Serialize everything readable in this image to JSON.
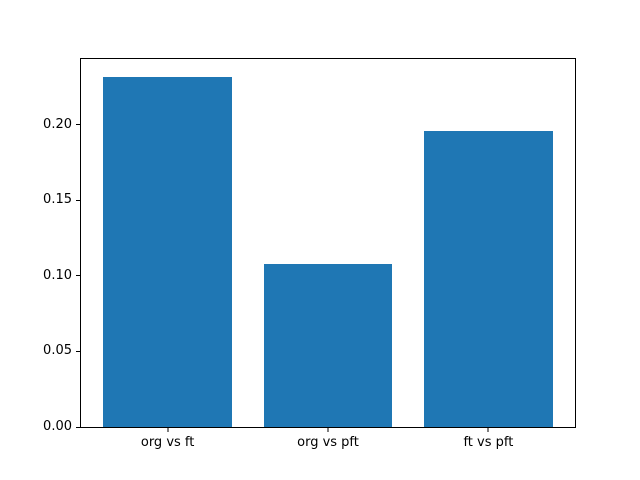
{
  "chart_data": {
    "type": "bar",
    "categories": [
      "org vs ft",
      "org vs pft",
      "ft vs pft"
    ],
    "values": [
      0.232,
      0.108,
      0.196
    ],
    "title": "",
    "xlabel": "",
    "ylabel": "",
    "ylim": [
      0,
      0.2436
    ],
    "yticks": [
      0.0,
      0.05,
      0.1,
      0.15,
      0.2
    ],
    "bar_width": 0.8,
    "bar_color": "#1f77b4",
    "background": "#ffffff",
    "grid": false,
    "legend": null
  }
}
